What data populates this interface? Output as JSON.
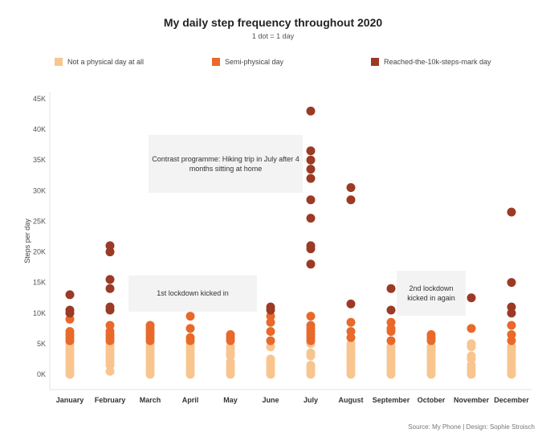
{
  "chart_data": {
    "type": "scatter",
    "title": "My daily step frequency throughout 2020",
    "subtitle": "1 dot = 1 day",
    "ylabel": "Steps per day",
    "xlabel": "",
    "ylim": [
      0,
      45000
    ],
    "yticks": [
      0,
      5000,
      10000,
      15000,
      20000,
      25000,
      30000,
      35000,
      40000,
      45000
    ],
    "ytick_labels": [
      "0K",
      "5K",
      "10K",
      "15K",
      "20K",
      "25K",
      "30K",
      "35K",
      "40K",
      "45K"
    ],
    "categories": [
      "January",
      "February",
      "March",
      "April",
      "May",
      "June",
      "July",
      "August",
      "September",
      "October",
      "November",
      "December"
    ],
    "legend": [
      {
        "name": "Not a physical day at all",
        "color": "#f9c58e"
      },
      {
        "name": "Semi-physical day",
        "color": "#e8692a"
      },
      {
        "name": "Reached-the-10k-steps-mark day",
        "color": "#9b3a25"
      }
    ],
    "series": [
      {
        "name": "Not a physical day at all",
        "color": "#f9c58e",
        "points": [
          [
            0,
            0
          ],
          [
            0,
            500
          ],
          [
            0,
            1000
          ],
          [
            0,
            1500
          ],
          [
            0,
            2000
          ],
          [
            0,
            2500
          ],
          [
            0,
            3000
          ],
          [
            0,
            3500
          ],
          [
            0,
            4000
          ],
          [
            0,
            4500
          ],
          [
            0,
            5000
          ],
          [
            1,
            500
          ],
          [
            1,
            1500
          ],
          [
            1,
            2000
          ],
          [
            1,
            2500
          ],
          [
            1,
            3000
          ],
          [
            1,
            3500
          ],
          [
            1,
            4000
          ],
          [
            1,
            4500
          ],
          [
            1,
            5000
          ],
          [
            2,
            0
          ],
          [
            2,
            500
          ],
          [
            2,
            1000
          ],
          [
            2,
            1500
          ],
          [
            2,
            2000
          ],
          [
            2,
            2500
          ],
          [
            2,
            3000
          ],
          [
            2,
            3500
          ],
          [
            2,
            4000
          ],
          [
            2,
            4500
          ],
          [
            2,
            5000
          ],
          [
            3,
            0
          ],
          [
            3,
            500
          ],
          [
            3,
            1000
          ],
          [
            3,
            1500
          ],
          [
            3,
            2000
          ],
          [
            3,
            2500
          ],
          [
            3,
            3000
          ],
          [
            3,
            3500
          ],
          [
            3,
            4000
          ],
          [
            3,
            4500
          ],
          [
            3,
            5000
          ],
          [
            4,
            0
          ],
          [
            4,
            500
          ],
          [
            4,
            1000
          ],
          [
            4,
            1500
          ],
          [
            4,
            2000
          ],
          [
            4,
            3000
          ],
          [
            4,
            3500
          ],
          [
            4,
            4000
          ],
          [
            4,
            4500
          ],
          [
            5,
            0
          ],
          [
            5,
            500
          ],
          [
            5,
            1000
          ],
          [
            5,
            1500
          ],
          [
            5,
            2000
          ],
          [
            5,
            2500
          ],
          [
            5,
            4500
          ],
          [
            6,
            0
          ],
          [
            6,
            500
          ],
          [
            6,
            1000
          ],
          [
            6,
            1500
          ],
          [
            6,
            3000
          ],
          [
            6,
            3500
          ],
          [
            6,
            5000
          ],
          [
            7,
            0
          ],
          [
            7,
            500
          ],
          [
            7,
            1000
          ],
          [
            7,
            1500
          ],
          [
            7,
            2000
          ],
          [
            7,
            2500
          ],
          [
            7,
            3000
          ],
          [
            7,
            3500
          ],
          [
            7,
            4000
          ],
          [
            7,
            4500
          ],
          [
            7,
            5000
          ],
          [
            8,
            0
          ],
          [
            8,
            500
          ],
          [
            8,
            1000
          ],
          [
            8,
            1500
          ],
          [
            8,
            2000
          ],
          [
            8,
            2500
          ],
          [
            8,
            3000
          ],
          [
            8,
            3500
          ],
          [
            8,
            4000
          ],
          [
            8,
            4500
          ],
          [
            9,
            0
          ],
          [
            9,
            500
          ],
          [
            9,
            1000
          ],
          [
            9,
            1500
          ],
          [
            9,
            2000
          ],
          [
            9,
            2500
          ],
          [
            9,
            3000
          ],
          [
            9,
            3500
          ],
          [
            9,
            4000
          ],
          [
            9,
            4500
          ],
          [
            10,
            0
          ],
          [
            10,
            500
          ],
          [
            10,
            1000
          ],
          [
            10,
            1500
          ],
          [
            10,
            2500
          ],
          [
            10,
            3000
          ],
          [
            10,
            4500
          ],
          [
            10,
            5000
          ],
          [
            11,
            0
          ],
          [
            11,
            500
          ],
          [
            11,
            1000
          ],
          [
            11,
            1500
          ],
          [
            11,
            2000
          ],
          [
            11,
            2500
          ],
          [
            11,
            3000
          ],
          [
            11,
            3500
          ],
          [
            11,
            4000
          ],
          [
            11,
            4500
          ]
        ]
      },
      {
        "name": "Semi-physical day",
        "color": "#e8692a",
        "points": [
          [
            0,
            5500
          ],
          [
            0,
            6000
          ],
          [
            0,
            6500
          ],
          [
            0,
            7000
          ],
          [
            0,
            9000
          ],
          [
            1,
            5500
          ],
          [
            1,
            6000
          ],
          [
            1,
            6500
          ],
          [
            1,
            7000
          ],
          [
            1,
            8000
          ],
          [
            2,
            5500
          ],
          [
            2,
            6000
          ],
          [
            2,
            6500
          ],
          [
            2,
            7000
          ],
          [
            2,
            7500
          ],
          [
            2,
            8000
          ],
          [
            3,
            5500
          ],
          [
            3,
            6000
          ],
          [
            3,
            7500
          ],
          [
            3,
            9500
          ],
          [
            4,
            5500
          ],
          [
            4,
            6000
          ],
          [
            4,
            6500
          ],
          [
            5,
            5500
          ],
          [
            5,
            7000
          ],
          [
            5,
            8500
          ],
          [
            5,
            9500
          ],
          [
            6,
            5500
          ],
          [
            6,
            6000
          ],
          [
            6,
            6500
          ],
          [
            6,
            7000
          ],
          [
            6,
            7500
          ],
          [
            6,
            8000
          ],
          [
            6,
            9500
          ],
          [
            7,
            6000
          ],
          [
            7,
            7000
          ],
          [
            7,
            8500
          ],
          [
            8,
            5500
          ],
          [
            8,
            7000
          ],
          [
            8,
            7500
          ],
          [
            8,
            8500
          ],
          [
            9,
            5500
          ],
          [
            9,
            6000
          ],
          [
            9,
            6500
          ],
          [
            10,
            7500
          ],
          [
            11,
            5500
          ],
          [
            11,
            6500
          ],
          [
            11,
            8000
          ]
        ]
      },
      {
        "name": "Reached-the-10k-steps-mark day",
        "color": "#9b3a25",
        "points": [
          [
            0,
            10000
          ],
          [
            0,
            10500
          ],
          [
            0,
            13000
          ],
          [
            1,
            10500
          ],
          [
            1,
            11000
          ],
          [
            1,
            14000
          ],
          [
            1,
            15500
          ],
          [
            1,
            20000
          ],
          [
            1,
            21000
          ],
          [
            5,
            10500
          ],
          [
            5,
            11000
          ],
          [
            6,
            18000
          ],
          [
            6,
            20500
          ],
          [
            6,
            21000
          ],
          [
            6,
            25500
          ],
          [
            6,
            28500
          ],
          [
            6,
            32000
          ],
          [
            6,
            33500
          ],
          [
            6,
            35000
          ],
          [
            6,
            36500
          ],
          [
            6,
            43000
          ],
          [
            7,
            11500
          ],
          [
            7,
            28500
          ],
          [
            7,
            30500
          ],
          [
            8,
            10500
          ],
          [
            8,
            14000
          ],
          [
            10,
            12500
          ],
          [
            11,
            10000
          ],
          [
            11,
            11000
          ],
          [
            11,
            15000
          ],
          [
            11,
            26500
          ]
        ]
      }
    ],
    "annotations": [
      {
        "text": "Contrast programme: Hiking trip in July after 4 months sitting at home"
      },
      {
        "text": "1st lockdown kicked in"
      },
      {
        "text": "2nd lockdown kicked in again"
      }
    ]
  },
  "footer": {
    "source": "Source: My Phone |  Design: Sophie Stroisch"
  }
}
